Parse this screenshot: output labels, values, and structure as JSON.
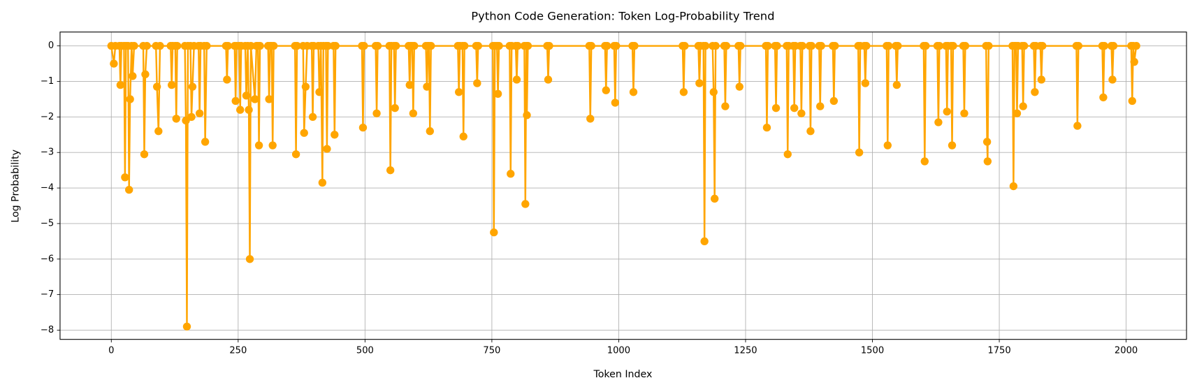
{
  "chart_data": {
    "type": "line",
    "title": "Python Code Generation: Token Log-Probability Trend",
    "x_label": "Token Index",
    "y_label": "Log Probability",
    "color": "#ffa500",
    "grid": true,
    "xlim": [
      -101,
      2119
    ],
    "ylim": [
      -8.26,
      0.39
    ],
    "xticks": [
      0,
      250,
      500,
      750,
      1000,
      1250,
      1500,
      1750,
      2000
    ],
    "yticks": [
      {
        "value": -8,
        "label": "−8"
      },
      {
        "value": -7,
        "label": "−7"
      },
      {
        "value": -6,
        "label": "−6"
      },
      {
        "value": -5,
        "label": "−5"
      },
      {
        "value": -4,
        "label": "−4"
      },
      {
        "value": -3,
        "label": "−3"
      },
      {
        "value": -2,
        "label": "−2"
      },
      {
        "value": -1,
        "label": "−1"
      },
      0
    ],
    "x": [
      0,
      5,
      8,
      16,
      18,
      20,
      25,
      27,
      29,
      33,
      35,
      37,
      40,
      42,
      45,
      63,
      65,
      67,
      70,
      88,
      90,
      93,
      96,
      117,
      119,
      121,
      126,
      128,
      130,
      145,
      147,
      149,
      151,
      156,
      158,
      160,
      163,
      172,
      174,
      176,
      183,
      185,
      188,
      226,
      228,
      230,
      243,
      245,
      247,
      252,
      254,
      256,
      264,
      266,
      269,
      271,
      273,
      275,
      283,
      286,
      289,
      291,
      293,
      309,
      311,
      313,
      316,
      318,
      320,
      362,
      364,
      366,
      378,
      380,
      383,
      386,
      395,
      397,
      399,
      408,
      410,
      413,
      416,
      418,
      423,
      425,
      427,
      438,
      440,
      442,
      494,
      496,
      498,
      521,
      523,
      525,
      548,
      550,
      552,
      557,
      559,
      561,
      586,
      588,
      590,
      593,
      595,
      597,
      620,
      622,
      624,
      626,
      628,
      630,
      683,
      685,
      687,
      692,
      694,
      696,
      719,
      721,
      723,
      752,
      754,
      756,
      760,
      762,
      764,
      785,
      787,
      789,
      797,
      799,
      801,
      814,
      816,
      818,
      819,
      821,
      859,
      861,
      863,
      942,
      944,
      946,
      973,
      975,
      977,
      991,
      993,
      995,
      1027,
      1029,
      1031,
      1126,
      1128,
      1130,
      1157,
      1159,
      1161,
      1167,
      1169,
      1171,
      1185,
      1187,
      1189,
      1191,
      1208,
      1210,
      1212,
      1236,
      1238,
      1240,
      1290,
      1292,
      1294,
      1308,
      1310,
      1312,
      1331,
      1333,
      1335,
      1344,
      1346,
      1348,
      1358,
      1360,
      1362,
      1376,
      1378,
      1380,
      1395,
      1397,
      1399,
      1422,
      1424,
      1426,
      1472,
      1474,
      1476,
      1484,
      1486,
      1488,
      1528,
      1530,
      1532,
      1546,
      1548,
      1550,
      1601,
      1603,
      1605,
      1628,
      1630,
      1632,
      1645,
      1647,
      1649,
      1655,
      1657,
      1659,
      1679,
      1681,
      1683,
      1724,
      1726,
      1727,
      1729,
      1776,
      1778,
      1780,
      1783,
      1785,
      1787,
      1795,
      1797,
      1799,
      1818,
      1820,
      1822,
      1831,
      1833,
      1835,
      1902,
      1904,
      1906,
      1953,
      1955,
      1957,
      1971,
      1973,
      1975,
      2010,
      2012,
      2014,
      2016,
      2020
    ],
    "values": [
      0,
      -0.5,
      0,
      0,
      -1.1,
      0,
      0,
      -3.7,
      0,
      0,
      -4.05,
      -1.5,
      0,
      -0.85,
      0,
      0,
      -3.05,
      -0.8,
      0,
      0,
      -1.15,
      -2.4,
      0,
      0,
      -1.1,
      0,
      0,
      -2.05,
      0,
      0,
      -2.1,
      -7.9,
      0,
      0,
      -2.0,
      -1.15,
      0,
      0,
      -1.9,
      0,
      0,
      -2.7,
      0,
      0,
      -0.95,
      0,
      0,
      -1.55,
      0,
      0,
      -1.8,
      0,
      0,
      -1.4,
      0,
      -1.8,
      -6.0,
      0,
      -1.5,
      0,
      0,
      -2.8,
      0,
      0,
      -1.5,
      0,
      0,
      -2.8,
      0,
      0,
      -3.05,
      0,
      0,
      -2.45,
      -1.15,
      0,
      0,
      -2.0,
      0,
      0,
      -1.3,
      0,
      -3.85,
      0,
      0,
      -2.9,
      0,
      0,
      -2.5,
      0,
      0,
      -2.3,
      0,
      0,
      -1.9,
      0,
      0,
      -3.5,
      0,
      0,
      -1.75,
      0,
      0,
      -1.1,
      0,
      0,
      -1.9,
      0,
      0,
      -1.15,
      0,
      0,
      -2.4,
      0,
      0,
      -1.3,
      0,
      0,
      -2.55,
      0,
      0,
      -1.05,
      0,
      0,
      -5.25,
      0,
      0,
      -1.35,
      0,
      0,
      -3.6,
      0,
      0,
      -0.95,
      0,
      0,
      -4.45,
      0,
      -1.95,
      0,
      0,
      -0.95,
      0,
      0,
      -2.05,
      0,
      0,
      -1.25,
      0,
      0,
      -1.6,
      0,
      0,
      -1.3,
      0,
      0,
      -1.3,
      0,
      0,
      -1.05,
      0,
      0,
      -5.5,
      0,
      0,
      -1.3,
      -4.3,
      0,
      0,
      -1.7,
      0,
      0,
      -1.15,
      0,
      0,
      -2.3,
      0,
      0,
      -1.75,
      0,
      0,
      -3.05,
      0,
      0,
      -1.75,
      0,
      0,
      -1.9,
      0,
      0,
      -2.4,
      0,
      0,
      -1.7,
      0,
      0,
      -1.55,
      0,
      0,
      -3.0,
      0,
      0,
      -1.05,
      0,
      0,
      -2.8,
      0,
      0,
      -1.1,
      0,
      0,
      -3.25,
      0,
      0,
      -2.15,
      0,
      0,
      -1.85,
      0,
      0,
      -2.8,
      0,
      0,
      -1.9,
      0,
      0,
      -2.7,
      -3.25,
      0,
      0,
      -3.95,
      0,
      0,
      -1.9,
      0,
      0,
      -1.7,
      0,
      0,
      -1.3,
      0,
      0,
      -0.95,
      0,
      0,
      -2.25,
      0,
      0,
      -1.45,
      0,
      0,
      -0.95,
      0,
      0,
      -1.55,
      0,
      -0.45,
      0
    ]
  }
}
